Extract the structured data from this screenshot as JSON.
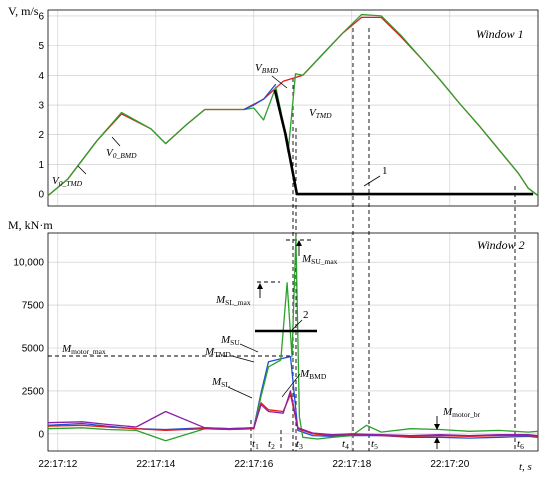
{
  "colors": {
    "red": "#e41a1c",
    "green": "#2ca02c",
    "blue": "#1f4fd6",
    "purple": "#8b1fa8",
    "command": "#000000",
    "grid": "#c8c8c8"
  },
  "chart_data": [
    {
      "type": "line",
      "panel": "Window 1",
      "ylabel": "V, m/s",
      "window_label": "Window 1",
      "ylim": [
        -0.4,
        6.2
      ],
      "y_ticks": [
        "0",
        "1",
        "2",
        "3",
        "4",
        "5",
        "6"
      ],
      "grid": true,
      "series": [
        {
          "name": "V0_BMD",
          "color": "#e41a1c",
          "x": [
            "22:17:11.8",
            "22:17:12.2",
            "22:17:12.8",
            "22:17:13.3",
            "22:17:13.9",
            "22:17:14.2",
            "22:17:14.6",
            "22:17:15.0",
            "22:17:15.4",
            "22:17:15.8",
            "22:17:16.2",
            "22:17:16.6",
            "22:17:17.0",
            "22:17:17.4",
            "22:17:17.8",
            "22:17:18.2",
            "22:17:18.6",
            "22:17:19.0",
            "22:17:19.4",
            "22:17:19.8",
            "22:17:20.2",
            "22:17:20.6",
            "22:17:21.0",
            "22:17:21.4",
            "22:17:21.6",
            "22:17:21.8"
          ],
          "values": [
            -0.05,
            0.5,
            1.8,
            2.7,
            2.2,
            1.7,
            2.3,
            2.85,
            2.85,
            2.85,
            3.2,
            3.8,
            4.0,
            4.7,
            5.4,
            5.95,
            5.95,
            5.3,
            4.6,
            3.85,
            3.05,
            2.3,
            1.5,
            0.7,
            0.2,
            -0.05
          ]
        },
        {
          "name": "V0_TMD",
          "color": "#2ca02c",
          "x": [
            "22:17:11.8",
            "22:17:12.2",
            "22:17:12.8",
            "22:17:13.3",
            "22:17:13.9",
            "22:17:14.2",
            "22:17:14.6",
            "22:17:15.0",
            "22:17:15.4",
            "22:17:15.8",
            "22:17:16.0",
            "22:17:16.2",
            "22:17:16.45",
            "22:17:16.55",
            "22:17:16.7",
            "22:17:16.85",
            "22:17:17.0",
            "22:17:17.4",
            "22:17:17.8",
            "22:17:18.2",
            "22:17:18.6",
            "22:17:19.0",
            "22:17:19.4",
            "22:17:19.8",
            "22:17:20.2",
            "22:17:20.6",
            "22:17:21.0",
            "22:17:21.4",
            "22:17:21.6",
            "22:17:21.8"
          ],
          "values": [
            -0.05,
            0.5,
            1.8,
            2.75,
            2.2,
            1.7,
            2.3,
            2.85,
            2.85,
            2.85,
            2.9,
            2.5,
            3.6,
            2.8,
            1.4,
            4.05,
            4.0,
            4.7,
            5.4,
            6.05,
            6.0,
            5.35,
            4.6,
            3.85,
            3.05,
            2.3,
            1.5,
            0.7,
            0.2,
            -0.05
          ]
        },
        {
          "name": "V_BMD",
          "color": "#1f4fd6",
          "x": [
            "22:17:15.8",
            "22:17:16.0",
            "22:17:16.2",
            "22:17:16.45"
          ],
          "values": [
            2.85,
            3.0,
            3.2,
            3.7
          ]
        },
        {
          "name": "1",
          "color": "#000000",
          "x": [
            "22:17:16.43",
            "22:17:16.65",
            "22:17:16.88",
            "22:17:21.7"
          ],
          "values": [
            3.5,
            2.0,
            0.0,
            0.0
          ]
        }
      ],
      "annotations": [
        "V0_BMD",
        "V0_TMD",
        "VBMD",
        "VTMD",
        "1"
      ]
    },
    {
      "type": "line",
      "panel": "Window 2",
      "ylabel": "M, kN·m",
      "window_label": "Window 2",
      "xlabel": "t, s",
      "ylim": [
        -1000,
        11700
      ],
      "y_ticks": [
        "0",
        "2500",
        "5000",
        "7500",
        "10,000"
      ],
      "x_ticks": [
        "22:17:12",
        "22:17:14",
        "22:17:16",
        "22:17:18",
        "22:17:20"
      ],
      "grid": true,
      "series": [
        {
          "name": "MSU",
          "color": "#1f4fd6",
          "x": [
            "22:17:11.8",
            "22:17:12.5",
            "22:17:13.0",
            "22:17:13.6",
            "22:17:14.2",
            "22:17:15.0",
            "22:17:15.5",
            "22:17:16.0",
            "22:17:16.15",
            "22:17:16.3",
            "22:17:16.6",
            "22:17:16.75",
            "22:17:16.9",
            "22:17:17.2",
            "22:17:17.6",
            "22:17:18.0",
            "22:17:18.6",
            "22:17:19.2",
            "22:17:19.8",
            "22:17:20.4",
            "22:17:21.0",
            "22:17:21.6",
            "22:17:21.8"
          ],
          "values": [
            500,
            600,
            450,
            300,
            250,
            350,
            300,
            350,
            2400,
            4200,
            4400,
            4500,
            200,
            -100,
            -150,
            -100,
            -100,
            -200,
            -200,
            -250,
            -200,
            -150,
            -200
          ]
        },
        {
          "name": "MTMD",
          "color": "#2ca02c",
          "x": [
            "22:17:11.8",
            "22:17:12.5",
            "22:17:13.0",
            "22:17:13.6",
            "22:17:14.2",
            "22:17:15.0",
            "22:17:15.5",
            "22:17:16.0",
            "22:17:16.15",
            "22:17:16.3",
            "22:17:16.55",
            "22:17:16.68",
            "22:17:16.78",
            "22:17:16.86",
            "22:17:16.93",
            "22:17:17.0",
            "22:17:17.3",
            "22:17:17.6",
            "22:17:18.0",
            "22:17:18.3",
            "22:17:18.6",
            "22:17:19.2",
            "22:17:19.8",
            "22:17:20.4",
            "22:17:21.0",
            "22:17:21.6",
            "22:17:21.8"
          ],
          "values": [
            300,
            350,
            250,
            200,
            -400,
            300,
            250,
            300,
            2200,
            3900,
            4300,
            8800,
            4500,
            11500,
            1000,
            -200,
            -300,
            -200,
            -100,
            500,
            100,
            300,
            250,
            150,
            200,
            100,
            150
          ]
        },
        {
          "name": "MBMD",
          "color": "#e41a1c",
          "x": [
            "22:17:11.8",
            "22:17:12.5",
            "22:17:13.0",
            "22:17:13.6",
            "22:17:14.2",
            "22:17:15.0",
            "22:17:15.5",
            "22:17:16.0",
            "22:17:16.15",
            "22:17:16.3",
            "22:17:16.6",
            "22:17:16.75",
            "22:17:16.9",
            "22:17:17.2",
            "22:17:17.6",
            "22:17:18.0",
            "22:17:18.6",
            "22:17:19.2",
            "22:17:19.8",
            "22:17:20.4",
            "22:17:21.0",
            "22:17:21.6",
            "22:17:21.8"
          ],
          "values": [
            450,
            500,
            400,
            300,
            200,
            300,
            250,
            300,
            1800,
            1400,
            1300,
            2300,
            300,
            0,
            -100,
            -50,
            -100,
            -150,
            -100,
            -150,
            -100,
            -100,
            -150
          ]
        },
        {
          "name": "MSL",
          "color": "#8b1fa8",
          "x": [
            "22:17:11.8",
            "22:17:12.5",
            "22:17:13.0",
            "22:17:13.6",
            "22:17:14.2",
            "22:17:15.0",
            "22:17:15.5",
            "22:17:16.0",
            "22:17:16.15",
            "22:17:16.3",
            "22:17:16.6",
            "22:17:16.75",
            "22:17:16.9",
            "22:17:17.2",
            "22:17:17.6",
            "22:17:18.0",
            "22:17:18.6",
            "22:17:19.2",
            "22:17:19.8",
            "22:17:20.4",
            "22:17:21.0",
            "22:17:21.6",
            "22:17:21.8"
          ],
          "values": [
            650,
            700,
            550,
            400,
            1300,
            350,
            300,
            350,
            1700,
            1300,
            1200,
            2500,
            350,
            50,
            -50,
            0,
            -50,
            -100,
            -50,
            -100,
            -50,
            -50,
            -100
          ]
        }
      ],
      "annotations": [
        "Mmotor_max",
        "MSU_max",
        "MSL_max",
        "MSU",
        "MTMD",
        "MSL",
        "MBMD",
        "Mmotor_br",
        "2",
        "t1",
        "t2",
        "t3",
        "t4",
        "t5",
        "t6"
      ]
    }
  ]
}
